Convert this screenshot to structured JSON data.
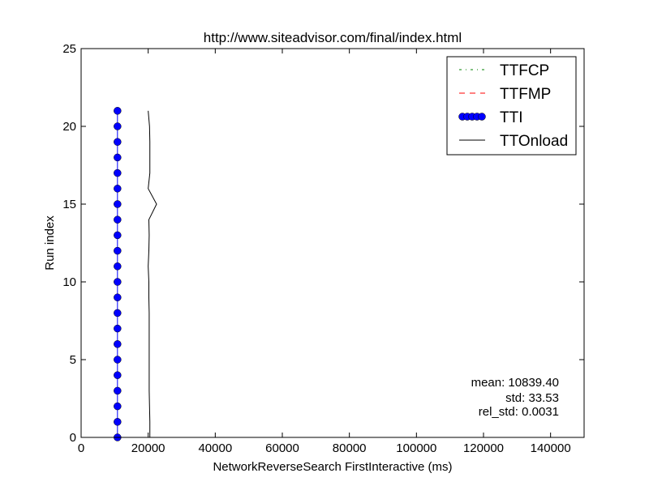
{
  "chart_data": {
    "type": "line",
    "title": "http://www.siteadvisor.com/final/index.html",
    "xlabel": "NetworkReverseSearch FirstInteractive (ms)",
    "ylabel": "Run index",
    "xlim": [
      0,
      150000
    ],
    "ylim": [
      0,
      25
    ],
    "xticks": [
      0,
      20000,
      40000,
      60000,
      80000,
      100000,
      120000,
      140000
    ],
    "yticks": [
      0,
      5,
      10,
      15,
      20,
      25
    ],
    "grid": false,
    "legend_position": "top-right",
    "series": [
      {
        "name": "TTFCP",
        "style": "dash-dot",
        "color": "#008000",
        "points": []
      },
      {
        "name": "TTFMP",
        "style": "dashed",
        "color": "#ff0000",
        "points": []
      },
      {
        "name": "TTI",
        "style": "solid-marker",
        "color": "#0000ff",
        "points": [
          [
            10840,
            0
          ],
          [
            10840,
            1
          ],
          [
            10840,
            2
          ],
          [
            10840,
            3
          ],
          [
            10840,
            4
          ],
          [
            10840,
            5
          ],
          [
            10840,
            6
          ],
          [
            10840,
            7
          ],
          [
            10840,
            8
          ],
          [
            10840,
            9
          ],
          [
            10840,
            10
          ],
          [
            10840,
            11
          ],
          [
            10840,
            12
          ],
          [
            10840,
            13
          ],
          [
            10840,
            14
          ],
          [
            10840,
            15
          ],
          [
            10840,
            16
          ],
          [
            10840,
            17
          ],
          [
            10840,
            18
          ],
          [
            10840,
            19
          ],
          [
            10840,
            20
          ],
          [
            10840,
            21
          ]
        ]
      },
      {
        "name": "TTOnload",
        "style": "solid",
        "color": "#000000",
        "points": [
          [
            20500,
            0
          ],
          [
            20500,
            1
          ],
          [
            20400,
            2
          ],
          [
            20300,
            3
          ],
          [
            20300,
            4
          ],
          [
            20300,
            5
          ],
          [
            20300,
            6
          ],
          [
            20300,
            7
          ],
          [
            20300,
            8
          ],
          [
            20200,
            9
          ],
          [
            20200,
            10
          ],
          [
            20000,
            11
          ],
          [
            20200,
            12
          ],
          [
            20300,
            13
          ],
          [
            20200,
            14
          ],
          [
            22500,
            15
          ],
          [
            20000,
            16
          ],
          [
            20500,
            17
          ],
          [
            20500,
            18
          ],
          [
            20500,
            19
          ],
          [
            20400,
            20
          ],
          [
            20000,
            21
          ]
        ]
      }
    ],
    "annotations": [
      "mean: 10839.40",
      "std: 33.53",
      "rel_std: 0.0031"
    ]
  }
}
